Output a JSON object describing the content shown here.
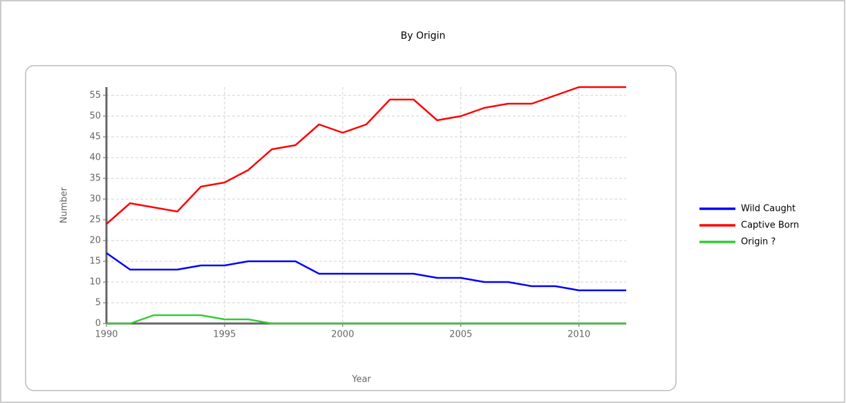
{
  "chart_data": {
    "type": "line",
    "title": "By Origin",
    "x_label": "Year",
    "y_label": "Number",
    "x": [
      1990,
      1991,
      1992,
      1993,
      1994,
      1995,
      1996,
      1997,
      1998,
      1999,
      2000,
      2001,
      2002,
      2003,
      2004,
      2005,
      2006,
      2007,
      2008,
      2009,
      2010,
      2011,
      2012
    ],
    "series": [
      {
        "name": "Wild Caught",
        "color": "#0000ff",
        "values": [
          17,
          13,
          13,
          13,
          14,
          14,
          15,
          15,
          15,
          12,
          12,
          12,
          12,
          12,
          11,
          11,
          10,
          10,
          9,
          9,
          8,
          8,
          8
        ]
      },
      {
        "name": "Captive Born",
        "color": "#ff0000",
        "values": [
          24,
          29,
          28,
          27,
          33,
          34,
          37,
          42,
          43,
          48,
          46,
          48,
          54,
          54,
          49,
          50,
          52,
          53,
          53,
          55,
          57,
          57,
          57
        ]
      },
      {
        "name": "Origin ?",
        "color": "#33cc33",
        "values": [
          0,
          0,
          2,
          2,
          2,
          1,
          1,
          0,
          0,
          0,
          0,
          0,
          0,
          0,
          0,
          0,
          0,
          0,
          0,
          0,
          0,
          0,
          0
        ]
      }
    ],
    "xlim": [
      1990,
      2012
    ],
    "xticks": [
      1990,
      1995,
      2000,
      2005,
      2010
    ],
    "ylim": [
      0,
      57
    ],
    "yticks": [
      0,
      5,
      10,
      15,
      20,
      25,
      30,
      35,
      40,
      45,
      50,
      55
    ],
    "grid": true,
    "legend": "right"
  }
}
